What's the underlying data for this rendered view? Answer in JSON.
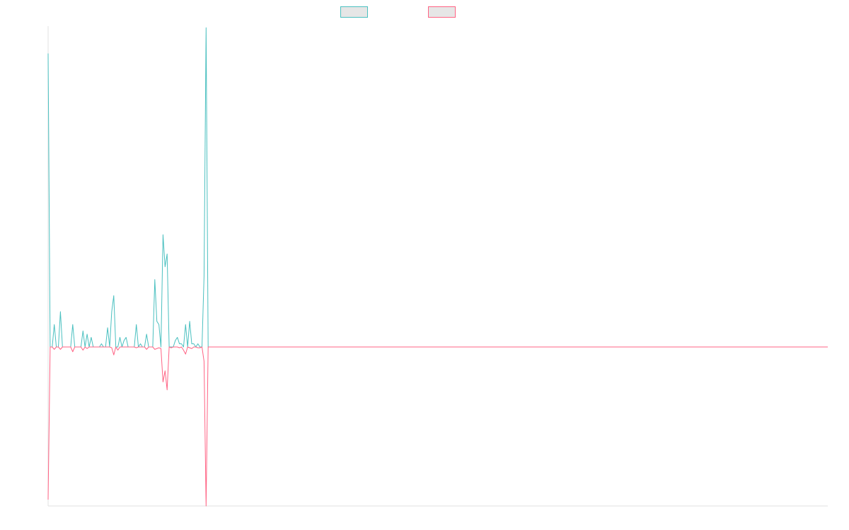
{
  "chart_data": {
    "type": "line",
    "title": "",
    "xlabel": "",
    "ylabel": "",
    "legend": "top-center",
    "grid": false,
    "ylim": [
      -1.0,
      1.0
    ],
    "series": [
      {
        "color": "#4bc0c0",
        "points": [
          [
            0,
            0.915
          ],
          [
            1,
            0.0
          ],
          [
            2,
            0.0
          ],
          [
            3,
            0.07
          ],
          [
            4,
            0.0
          ],
          [
            5,
            0.0
          ],
          [
            6,
            0.11
          ],
          [
            7,
            0.0
          ],
          [
            8,
            0.0
          ],
          [
            10,
            0.0
          ],
          [
            11,
            0.0
          ],
          [
            12,
            0.07
          ],
          [
            13,
            0.0
          ],
          [
            14,
            0.0
          ],
          [
            16,
            0.0
          ],
          [
            17,
            0.05
          ],
          [
            18,
            0.0
          ],
          [
            19,
            0.04
          ],
          [
            20,
            0.0
          ],
          [
            21,
            0.03
          ],
          [
            22,
            0.0
          ],
          [
            24,
            0.0
          ],
          [
            25,
            0.0
          ],
          [
            26,
            0.01
          ],
          [
            27,
            0.0
          ],
          [
            28,
            0.0
          ],
          [
            29,
            0.06
          ],
          [
            30,
            0.0
          ],
          [
            31,
            0.11
          ],
          [
            32,
            0.16
          ],
          [
            33,
            0.0
          ],
          [
            34,
            0.0
          ],
          [
            35,
            0.03
          ],
          [
            36,
            0.0
          ],
          [
            37,
            0.02
          ],
          [
            38,
            0.03
          ],
          [
            39,
            0.0
          ],
          [
            40,
            0.0
          ],
          [
            41,
            0.0
          ],
          [
            42,
            0.0
          ],
          [
            43,
            0.07
          ],
          [
            44,
            0.0
          ],
          [
            45,
            0.01
          ],
          [
            46,
            0.0
          ],
          [
            47,
            0.0
          ],
          [
            48,
            0.04
          ],
          [
            49,
            0.0
          ],
          [
            50,
            0.0
          ],
          [
            51,
            0.0
          ],
          [
            52,
            0.21
          ],
          [
            53,
            0.08
          ],
          [
            54,
            0.07
          ],
          [
            55,
            0.0
          ],
          [
            56,
            0.35
          ],
          [
            57,
            0.25
          ],
          [
            58,
            0.29
          ],
          [
            59,
            0.0
          ],
          [
            60,
            0.0
          ],
          [
            61,
            0.0
          ],
          [
            62,
            0.02
          ],
          [
            63,
            0.03
          ],
          [
            64,
            0.01
          ],
          [
            65,
            0.01
          ],
          [
            66,
            0.0
          ],
          [
            67,
            0.07
          ],
          [
            68,
            0.0
          ],
          [
            69,
            0.08
          ],
          [
            70,
            0.01
          ],
          [
            71,
            0.01
          ],
          [
            72,
            0.0
          ],
          [
            73,
            0.01
          ],
          [
            74,
            0.0
          ],
          [
            75,
            0.0
          ],
          [
            76,
            0.22
          ],
          [
            77,
            0.995
          ],
          [
            78,
            0.0
          ],
          [
            79,
            0.0
          ],
          [
            80,
            0.0
          ],
          [
            100,
            0.0
          ],
          [
            150,
            0.0
          ],
          [
            200,
            0.0
          ],
          [
            250,
            0.0
          ],
          [
            300,
            0.0
          ],
          [
            350,
            0.0
          ],
          [
            380,
            0.0
          ]
        ]
      },
      {
        "color": "#ff6384",
        "points": [
          [
            0,
            -0.96
          ],
          [
            1,
            0.0
          ],
          [
            2,
            0.0
          ],
          [
            3,
            -0.015
          ],
          [
            4,
            0.0
          ],
          [
            5,
            0.0
          ],
          [
            6,
            -0.015
          ],
          [
            7,
            0.0
          ],
          [
            8,
            0.0
          ],
          [
            10,
            0.0
          ],
          [
            11,
            0.0
          ],
          [
            12,
            -0.03
          ],
          [
            13,
            0.0
          ],
          [
            14,
            0.0
          ],
          [
            16,
            0.0
          ],
          [
            17,
            -0.02
          ],
          [
            18,
            0.0
          ],
          [
            19,
            -0.01
          ],
          [
            20,
            0.0
          ],
          [
            21,
            0.0
          ],
          [
            22,
            0.0
          ],
          [
            24,
            0.0
          ],
          [
            25,
            0.0
          ],
          [
            26,
            0.0
          ],
          [
            27,
            0.0
          ],
          [
            28,
            0.0
          ],
          [
            29,
            0.0
          ],
          [
            30,
            0.0
          ],
          [
            31,
            -0.005
          ],
          [
            32,
            -0.05
          ],
          [
            33,
            0.0
          ],
          [
            34,
            -0.02
          ],
          [
            35,
            0.0
          ],
          [
            36,
            0.0
          ],
          [
            37,
            0.0
          ],
          [
            38,
            0.0
          ],
          [
            39,
            0.0
          ],
          [
            40,
            0.0
          ],
          [
            41,
            0.0
          ],
          [
            42,
            0.0
          ],
          [
            43,
            -0.005
          ],
          [
            44,
            0.0
          ],
          [
            45,
            0.0
          ],
          [
            46,
            0.0
          ],
          [
            47,
            0.0
          ],
          [
            48,
            -0.015
          ],
          [
            49,
            0.0
          ],
          [
            50,
            0.0
          ],
          [
            51,
            0.0
          ],
          [
            52,
            -0.015
          ],
          [
            53,
            -0.01
          ],
          [
            54,
            -0.005
          ],
          [
            55,
            -0.01
          ],
          [
            56,
            -0.22
          ],
          [
            57,
            -0.15
          ],
          [
            58,
            -0.27
          ],
          [
            59,
            0.0
          ],
          [
            60,
            -0.005
          ],
          [
            61,
            0.0
          ],
          [
            62,
            0.0
          ],
          [
            63,
            0.0
          ],
          [
            64,
            -0.005
          ],
          [
            65,
            0.0
          ],
          [
            66,
            -0.02
          ],
          [
            67,
            -0.045
          ],
          [
            68,
            0.0
          ],
          [
            69,
            -0.005
          ],
          [
            70,
            -0.01
          ],
          [
            71,
            0.0
          ],
          [
            72,
            0.0
          ],
          [
            73,
            -0.005
          ],
          [
            74,
            -0.005
          ],
          [
            75,
            0.0
          ],
          [
            76,
            -0.09
          ],
          [
            77,
            -1.0
          ],
          [
            78,
            0.0
          ],
          [
            79,
            0.0
          ],
          [
            80,
            0.0
          ],
          [
            100,
            0.0
          ],
          [
            150,
            0.0
          ],
          [
            200,
            0.0
          ],
          [
            250,
            0.0
          ],
          [
            300,
            0.0
          ],
          [
            350,
            0.0
          ],
          [
            380,
            0.0
          ]
        ]
      }
    ]
  }
}
